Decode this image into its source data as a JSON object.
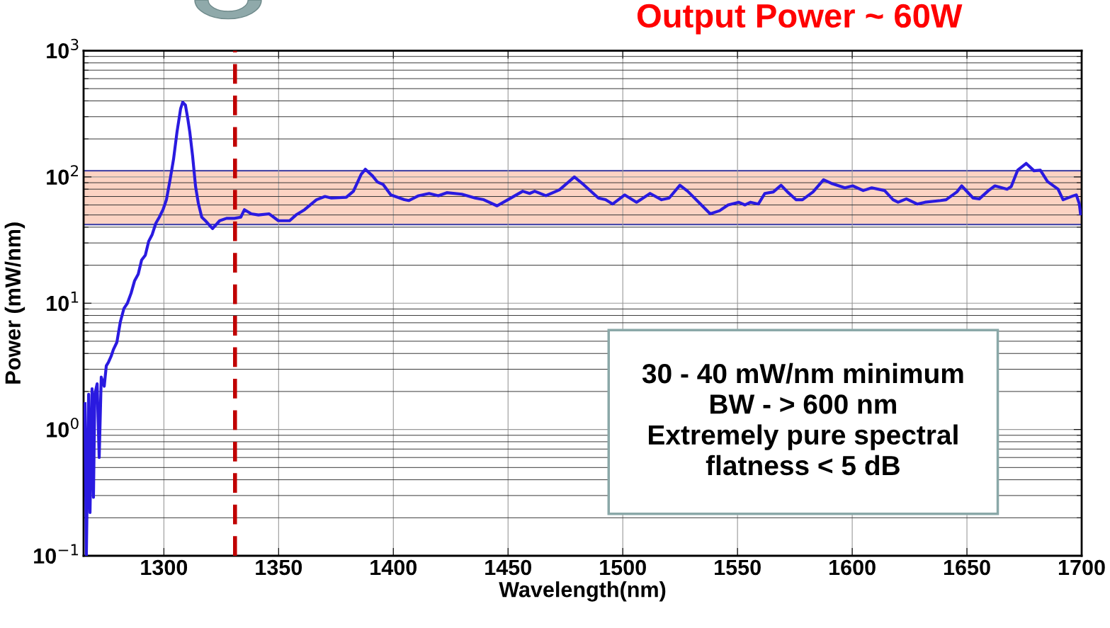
{
  "chart_data": {
    "type": "line",
    "title": "Output Power ~ 60W",
    "xlabel": "Wavelength(nm)",
    "ylabel": "Power (mW/nm)",
    "log": "y",
    "grid": true,
    "marker": "none",
    "line_style": "solid",
    "xlim": [
      1265,
      1700
    ],
    "xticks": [
      1300,
      1350,
      1400,
      1450,
      1500,
      1550,
      1600,
      1650,
      1700
    ],
    "ylim": [
      0.1,
      1000
    ],
    "yticks": [
      {
        "value": 0.1,
        "label": "10$^{−1}$"
      },
      {
        "value": 1,
        "label": "10$^{0}$"
      },
      {
        "value": 10,
        "label": "10$^{1}$"
      },
      {
        "value": 100,
        "label": "10$^{2}$"
      },
      {
        "value": 1000,
        "label": "10$^{3}$"
      }
    ],
    "ref_lines": [
      {
        "axis": "x",
        "value": 1331,
        "color": "#c00000",
        "line_style": "dashed"
      }
    ],
    "bands": [
      {
        "axis": "y",
        "from": 42,
        "to": 112,
        "color": "#fcd3c3"
      }
    ],
    "annotations": [
      "30 - 40 mW/nm minimum\nBW - > 600 nm\nExtremely pure spectral\nflatness < 5 dB"
    ],
    "series": [
      {
        "color": "#2a1ae0",
        "x": [
          1265.6,
          1266.2,
          1267.2,
          1267.8,
          1268.7,
          1269.3,
          1269.9,
          1270.9,
          1271.8,
          1272.7,
          1274.0,
          1274.9,
          1275.8,
          1277.0,
          1278.0,
          1279.5,
          1281.0,
          1282.6,
          1284.1,
          1285.7,
          1287.2,
          1288.8,
          1290.3,
          1291.9,
          1293.4,
          1294.9,
          1296.5,
          1298.0,
          1299.6,
          1301.1,
          1302.7,
          1304.2,
          1305.7,
          1307.3,
          1308.2,
          1309.4,
          1310.4,
          1311.3,
          1312.5,
          1313.8,
          1315.0,
          1316.5,
          1318.1,
          1319.6,
          1321.2,
          1324.3,
          1327.3,
          1330.7,
          1333.5,
          1335.1,
          1338.1,
          1341.2,
          1345.9,
          1349.9,
          1354.8,
          1357.6,
          1361.3,
          1366.5,
          1370.2,
          1373.0,
          1379.5,
          1382.6,
          1386.0,
          1387.8,
          1390.9,
          1393.1,
          1395.6,
          1398.9,
          1404.8,
          1406.7,
          1411.0,
          1415.6,
          1419.6,
          1423.3,
          1429.8,
          1435.7,
          1439.4,
          1445.2,
          1449.9,
          1456.4,
          1459.4,
          1461.6,
          1466.5,
          1472.4,
          1478.9,
          1482.9,
          1489.4,
          1492.5,
          1495.6,
          1500.8,
          1506.0,
          1511.9,
          1516.9,
          1520.2,
          1524.9,
          1528.3,
          1533.5,
          1538.1,
          1542.2,
          1545.9,
          1550.5,
          1553.3,
          1555.7,
          1559.1,
          1561.9,
          1565.6,
          1569.0,
          1571.8,
          1575.5,
          1578.3,
          1582.9,
          1587.5,
          1590.9,
          1596.8,
          1600.2,
          1604.8,
          1608.5,
          1614.1,
          1617.8,
          1620.0,
          1623.6,
          1628.3,
          1631.7,
          1638.5,
          1640.9,
          1645.6,
          1647.7,
          1652.7,
          1655.4,
          1659.4,
          1662.2,
          1667.5,
          1669.3,
          1672.1,
          1675.8,
          1679.2,
          1682.0,
          1685.1,
          1689.7,
          1691.9,
          1696.5,
          1697.7,
          1699.0,
          1699.5
        ],
        "values": [
          1.6,
          0.1,
          1.9,
          0.22,
          2.1,
          0.29,
          1.9,
          2.3,
          0.6,
          2.6,
          2.2,
          3.2,
          3.4,
          3.8,
          4.3,
          4.9,
          7.1,
          9.1,
          10,
          12,
          15,
          17,
          22,
          24,
          31,
          35,
          43,
          48,
          55,
          66,
          95,
          138,
          226,
          348,
          390,
          370,
          290,
          226,
          147,
          84,
          62,
          48,
          45,
          42,
          39,
          45,
          47,
          47,
          48,
          55,
          51,
          50,
          51,
          45,
          45,
          50,
          55,
          66,
          70,
          68,
          69,
          77,
          105,
          115,
          102,
          91,
          87,
          72,
          66,
          65,
          71,
          74,
          71,
          75,
          73,
          68,
          66,
          59,
          66,
          77,
          74,
          77,
          71,
          79,
          100,
          87,
          68,
          66,
          61,
          72,
          63,
          74,
          66,
          68,
          86,
          77,
          62,
          51,
          54,
          60,
          63,
          60,
          63,
          61,
          74,
          76,
          86,
          76,
          66,
          66,
          76,
          95,
          89,
          82,
          85,
          78,
          82,
          78,
          66,
          63,
          67,
          61,
          63,
          65,
          66,
          76,
          85,
          68,
          67,
          78,
          85,
          80,
          84,
          113,
          128,
          112,
          113,
          92,
          80,
          66,
          71,
          72,
          61,
          51
        ]
      }
    ]
  }
}
